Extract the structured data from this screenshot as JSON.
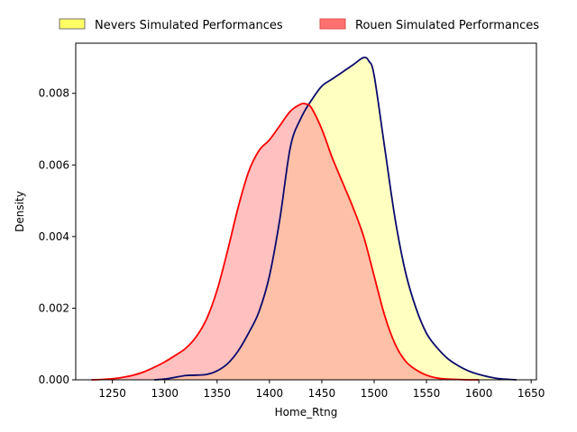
{
  "chart_data": {
    "type": "area",
    "title": "",
    "xlabel": "Home_Rtng",
    "ylabel": "Density",
    "xlim": [
      1215,
      1655
    ],
    "ylim": [
      0,
      0.0094
    ],
    "x_ticks": [
      1250,
      1300,
      1350,
      1400,
      1450,
      1500,
      1550,
      1600,
      1650
    ],
    "x_tick_labels": [
      "1250",
      "1300",
      "1350",
      "1400",
      "1450",
      "1500",
      "1550",
      "1600",
      "1650"
    ],
    "y_ticks": [
      0,
      0.002,
      0.004,
      0.006,
      0.008
    ],
    "y_tick_labels": [
      "0.000",
      "0.002",
      "0.004",
      "0.006",
      "0.008"
    ],
    "grid": false,
    "legend_position": "top",
    "series": [
      {
        "name": "Nevers Simulated Performances",
        "line_color": "#0a0a6e",
        "fill_color": "#ffff99",
        "legend_fill": "#ffff66",
        "legend_edge": "#707070",
        "x": [
          1290,
          1300,
          1310,
          1320,
          1330,
          1340,
          1350,
          1360,
          1370,
          1380,
          1390,
          1400,
          1410,
          1420,
          1430,
          1440,
          1450,
          1460,
          1470,
          1480,
          1490,
          1495,
          1500,
          1510,
          1520,
          1530,
          1540,
          1550,
          1560,
          1570,
          1580,
          1590,
          1600,
          1610,
          1620,
          1630,
          1636
        ],
        "y": [
          0,
          2e-05,
          7e-05,
          0.00012,
          0.00013,
          0.00015,
          0.00025,
          0.00045,
          0.0008,
          0.0013,
          0.0019,
          0.0029,
          0.0045,
          0.0065,
          0.0073,
          0.0078,
          0.0082,
          0.0084,
          0.0086,
          0.0088,
          0.009,
          0.0089,
          0.0085,
          0.0065,
          0.0045,
          0.003,
          0.002,
          0.0013,
          0.0009,
          0.0006,
          0.0004,
          0.00025,
          0.00015,
          8e-05,
          3e-05,
          1e-05,
          0
        ]
      },
      {
        "name": "Rouen Simulated Performances",
        "line_color": "#ff0000",
        "fill_color": "#ff9999",
        "legend_fill": "#ff7070",
        "legend_edge": "#e05050",
        "x": [
          1230,
          1240,
          1250,
          1260,
          1270,
          1280,
          1290,
          1300,
          1310,
          1320,
          1330,
          1340,
          1350,
          1360,
          1370,
          1380,
          1390,
          1400,
          1410,
          1420,
          1430,
          1435,
          1440,
          1450,
          1460,
          1470,
          1480,
          1490,
          1500,
          1510,
          1520,
          1530,
          1540,
          1550,
          1560,
          1570,
          1580,
          1590,
          1600
        ],
        "y": [
          0,
          1e-05,
          3e-05,
          7e-05,
          0.00013,
          0.00022,
          0.00035,
          0.0005,
          0.00068,
          0.00088,
          0.0012,
          0.0017,
          0.0025,
          0.0036,
          0.0048,
          0.0058,
          0.0064,
          0.0067,
          0.0071,
          0.0075,
          0.0077,
          0.0077,
          0.0076,
          0.007,
          0.0062,
          0.0055,
          0.0048,
          0.004,
          0.0029,
          0.0018,
          0.001,
          0.00052,
          0.00028,
          0.00013,
          5e-05,
          2e-05,
          1e-05,
          0,
          0
        ]
      }
    ]
  }
}
